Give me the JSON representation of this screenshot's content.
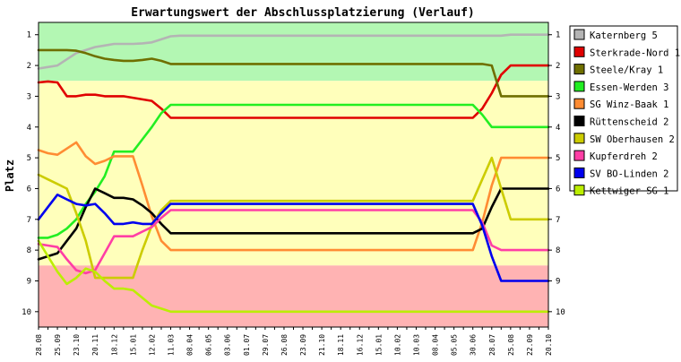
{
  "chart_data": {
    "type": "line",
    "title": "Erwartungswert der Abschlussplatzierung (Verlauf)",
    "ylabel": "Platz",
    "xlabel": "",
    "ylim": [
      0.6,
      10.5
    ],
    "y_inverted": true,
    "y_ticks": [
      "1",
      "2",
      "3",
      "4",
      "5",
      "6",
      "7",
      "8",
      "9",
      "10"
    ],
    "grid": false,
    "legend_position": "right",
    "zones": [
      {
        "from": 0.6,
        "to": 2.5,
        "color": "#b3f7b3"
      },
      {
        "from": 2.5,
        "to": 8.5,
        "color": "#ffffbb"
      },
      {
        "from": 8.5,
        "to": 10.5,
        "color": "#ffb3b3"
      }
    ],
    "categories": [
      "28.08",
      "04.09",
      "25.09",
      "09.10",
      "23.10",
      "06.11",
      "20.11",
      "27.11",
      "18.12",
      "08.01",
      "15.01",
      "29.01",
      "12.02",
      "26.02",
      "11.03",
      "25.03",
      "08.04",
      "22.04",
      "06.05",
      "20.05",
      "03.06",
      "17.06",
      "01.07",
      "15.07",
      "29.07",
      "12.08",
      "26.08",
      "09.09",
      "23.09",
      "07.10",
      "21.10",
      "04.11",
      "18.11",
      "02.12",
      "16.12",
      "30.12",
      "15.01",
      "29.01",
      "10.02",
      "24.02",
      "10.03",
      "24.03",
      "08.04",
      "22.04",
      "05.05",
      "19.05",
      "30.06",
      "14.07",
      "28.07",
      "11.08",
      "25.08",
      "08.09",
      "22.09",
      "06.10",
      "20.10"
    ],
    "series": [
      {
        "name": "Katernberg 5",
        "color": "#b4b4b4",
        "values": [
          2.1,
          2.05,
          2.0,
          1.8,
          1.6,
          1.5,
          1.4,
          1.35,
          1.3,
          1.3,
          1.3,
          1.28,
          1.25,
          1.15,
          1.05,
          1.03,
          1.03,
          1.03,
          1.03,
          1.03,
          1.03,
          1.03,
          1.03,
          1.03,
          1.03,
          1.03,
          1.03,
          1.03,
          1.03,
          1.03,
          1.03,
          1.03,
          1.03,
          1.03,
          1.03,
          1.03,
          1.03,
          1.03,
          1.03,
          1.03,
          1.03,
          1.03,
          1.03,
          1.03,
          1.03,
          1.03,
          1.03,
          1.03,
          1.03,
          1.03,
          1.0,
          1.0,
          1.0,
          1.0,
          1.0
        ]
      },
      {
        "name": "Sterkrade-Nord 1",
        "color": "#e00000",
        "values": [
          2.55,
          2.52,
          2.55,
          3.0,
          3.0,
          2.95,
          2.95,
          3.0,
          3.0,
          3.0,
          3.05,
          3.1,
          3.15,
          3.4,
          3.7,
          3.7,
          3.7,
          3.7,
          3.7,
          3.7,
          3.7,
          3.7,
          3.7,
          3.7,
          3.7,
          3.7,
          3.7,
          3.7,
          3.7,
          3.7,
          3.7,
          3.7,
          3.7,
          3.7,
          3.7,
          3.7,
          3.7,
          3.7,
          3.7,
          3.7,
          3.7,
          3.7,
          3.7,
          3.7,
          3.7,
          3.7,
          3.7,
          3.4,
          2.9,
          2.3,
          2.0,
          2.0,
          2.0,
          2.0,
          2.0
        ]
      },
      {
        "name": "Steele/Kray 1",
        "color": "#6f6f00",
        "values": [
          1.5,
          1.5,
          1.5,
          1.5,
          1.52,
          1.6,
          1.7,
          1.78,
          1.82,
          1.85,
          1.85,
          1.82,
          1.78,
          1.85,
          1.95,
          1.95,
          1.95,
          1.95,
          1.95,
          1.95,
          1.95,
          1.95,
          1.95,
          1.95,
          1.95,
          1.95,
          1.95,
          1.95,
          1.95,
          1.95,
          1.95,
          1.95,
          1.95,
          1.95,
          1.95,
          1.95,
          1.95,
          1.95,
          1.95,
          1.95,
          1.95,
          1.95,
          1.95,
          1.95,
          1.95,
          1.95,
          1.95,
          1.95,
          2.0,
          3.0,
          3.0,
          3.0,
          3.0,
          3.0,
          3.0
        ]
      },
      {
        "name": "Essen-Werden 3",
        "color": "#22ee22",
        "values": [
          7.6,
          7.6,
          7.5,
          7.3,
          7.0,
          6.5,
          6.1,
          5.6,
          4.8,
          4.8,
          4.8,
          4.4,
          4.0,
          3.55,
          3.28,
          3.28,
          3.28,
          3.28,
          3.28,
          3.28,
          3.28,
          3.28,
          3.28,
          3.28,
          3.28,
          3.28,
          3.28,
          3.28,
          3.28,
          3.28,
          3.28,
          3.28,
          3.28,
          3.28,
          3.28,
          3.28,
          3.28,
          3.28,
          3.28,
          3.28,
          3.28,
          3.28,
          3.28,
          3.28,
          3.28,
          3.28,
          3.28,
          3.6,
          4.0,
          4.0,
          4.0,
          4.0,
          4.0,
          4.0,
          4.0
        ]
      },
      {
        "name": "SG Winz-Baak 1",
        "color": "#ff8c33",
        "values": [
          4.75,
          4.85,
          4.9,
          4.7,
          4.5,
          4.95,
          5.2,
          5.1,
          4.95,
          4.95,
          4.95,
          5.9,
          6.9,
          7.7,
          8.0,
          8.0,
          8.0,
          8.0,
          8.0,
          8.0,
          8.0,
          8.0,
          8.0,
          8.0,
          8.0,
          8.0,
          8.0,
          8.0,
          8.0,
          8.0,
          8.0,
          8.0,
          8.0,
          8.0,
          8.0,
          8.0,
          8.0,
          8.0,
          8.0,
          8.0,
          8.0,
          8.0,
          8.0,
          8.0,
          8.0,
          8.0,
          8.0,
          7.1,
          5.9,
          5.0,
          5.0,
          5.0,
          5.0,
          5.0,
          5.0
        ]
      },
      {
        "name": "Rüttenscheid 2",
        "color": "#000000",
        "values": [
          8.3,
          8.2,
          8.1,
          7.7,
          7.3,
          6.6,
          6.0,
          6.15,
          6.3,
          6.3,
          6.35,
          6.55,
          6.8,
          7.15,
          7.45,
          7.45,
          7.45,
          7.45,
          7.45,
          7.45,
          7.45,
          7.45,
          7.45,
          7.45,
          7.45,
          7.45,
          7.45,
          7.45,
          7.45,
          7.45,
          7.45,
          7.45,
          7.45,
          7.45,
          7.45,
          7.45,
          7.45,
          7.45,
          7.45,
          7.45,
          7.45,
          7.45,
          7.45,
          7.45,
          7.45,
          7.45,
          7.45,
          7.3,
          6.6,
          6.0,
          6.0,
          6.0,
          6.0,
          6.0,
          6.0
        ]
      },
      {
        "name": "SW Oberhausen 2",
        "color": "#cccc00",
        "values": [
          5.55,
          5.7,
          5.85,
          6.0,
          6.8,
          7.7,
          8.9,
          8.9,
          8.9,
          8.9,
          8.9,
          8.0,
          7.2,
          6.7,
          6.4,
          6.4,
          6.4,
          6.4,
          6.4,
          6.4,
          6.4,
          6.4,
          6.4,
          6.4,
          6.4,
          6.4,
          6.4,
          6.4,
          6.4,
          6.4,
          6.4,
          6.4,
          6.4,
          6.4,
          6.4,
          6.4,
          6.4,
          6.4,
          6.4,
          6.4,
          6.4,
          6.4,
          6.4,
          6.4,
          6.4,
          6.4,
          6.4,
          5.7,
          5.0,
          6.0,
          7.0,
          7.0,
          7.0,
          7.0,
          7.0
        ]
      },
      {
        "name": "Kupferdreh 2",
        "color": "#ff3ea5",
        "values": [
          7.8,
          7.85,
          7.9,
          8.3,
          8.65,
          8.75,
          8.65,
          8.1,
          7.55,
          7.55,
          7.55,
          7.4,
          7.25,
          6.95,
          6.7,
          6.7,
          6.7,
          6.7,
          6.7,
          6.7,
          6.7,
          6.7,
          6.7,
          6.7,
          6.7,
          6.7,
          6.7,
          6.7,
          6.7,
          6.7,
          6.7,
          6.7,
          6.7,
          6.7,
          6.7,
          6.7,
          6.7,
          6.7,
          6.7,
          6.7,
          6.7,
          6.7,
          6.7,
          6.7,
          6.7,
          6.7,
          6.7,
          7.1,
          7.85,
          8.0,
          8.0,
          8.0,
          8.0,
          8.0,
          8.0
        ]
      },
      {
        "name": "SV BO-Linden 2",
        "color": "#0000ee",
        "values": [
          7.0,
          6.6,
          6.2,
          6.35,
          6.5,
          6.55,
          6.5,
          6.8,
          7.15,
          7.15,
          7.1,
          7.15,
          7.15,
          6.8,
          6.5,
          6.5,
          6.5,
          6.5,
          6.5,
          6.5,
          6.5,
          6.5,
          6.5,
          6.5,
          6.5,
          6.5,
          6.5,
          6.5,
          6.5,
          6.5,
          6.5,
          6.5,
          6.5,
          6.5,
          6.5,
          6.5,
          6.5,
          6.5,
          6.5,
          6.5,
          6.5,
          6.5,
          6.5,
          6.5,
          6.5,
          6.5,
          6.5,
          7.2,
          8.2,
          9.0,
          9.0,
          9.0,
          9.0,
          9.0,
          9.0
        ]
      },
      {
        "name": "Kettwiger SG 1",
        "color": "#bbee00",
        "values": [
          7.7,
          8.2,
          8.7,
          9.1,
          8.9,
          8.6,
          8.7,
          9.0,
          9.25,
          9.25,
          9.3,
          9.55,
          9.8,
          9.9,
          10.0,
          10.0,
          10.0,
          10.0,
          10.0,
          10.0,
          10.0,
          10.0,
          10.0,
          10.0,
          10.0,
          10.0,
          10.0,
          10.0,
          10.0,
          10.0,
          10.0,
          10.0,
          10.0,
          10.0,
          10.0,
          10.0,
          10.0,
          10.0,
          10.0,
          10.0,
          10.0,
          10.0,
          10.0,
          10.0,
          10.0,
          10.0,
          10.0,
          10.0,
          10.0,
          10.0,
          10.0,
          10.0,
          10.0,
          10.0,
          10.0
        ]
      }
    ]
  }
}
